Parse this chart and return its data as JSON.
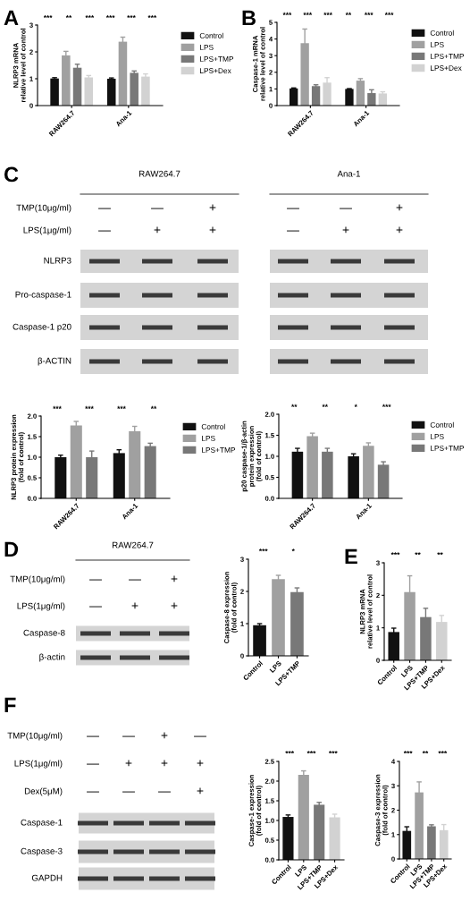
{
  "chart_data": [
    {
      "type": "bar",
      "title": "A",
      "ylabel": "NLRP3 mRNA\nrelative level of control",
      "categories": [
        "RAW264.7",
        "Ana-1"
      ],
      "series": [
        {
          "name": "Control",
          "color": "#111111",
          "values": [
            1.01,
            1.0
          ],
          "errors": [
            0.03,
            0.03
          ]
        },
        {
          "name": "LPS",
          "color": "#a0a0a0",
          "values": [
            1.87,
            2.38
          ],
          "errors": [
            0.15,
            0.17
          ]
        },
        {
          "name": "LPS+TMP",
          "color": "#787878",
          "values": [
            1.41,
            1.22
          ],
          "errors": [
            0.13,
            0.07
          ]
        },
        {
          "name": "LPS+Dex",
          "color": "#d2d2d2",
          "values": [
            1.05,
            1.08
          ],
          "errors": [
            0.07,
            0.1
          ]
        }
      ],
      "ylim": [
        0,
        3
      ],
      "yticks": [
        0,
        1,
        2,
        3
      ],
      "legend": "right",
      "annotations": [
        "***",
        "**",
        "***",
        "***",
        "***",
        "***"
      ]
    },
    {
      "type": "bar",
      "title": "B",
      "ylabel": "Caspase-1 mRNA\nrelative level of control",
      "categories": [
        "RAW264.7",
        "Ana-1"
      ],
      "series": [
        {
          "name": "Control",
          "color": "#111111",
          "values": [
            1.03,
            1.0
          ],
          "errors": [
            0.03,
            0.02
          ]
        },
        {
          "name": "LPS",
          "color": "#a0a0a0",
          "values": [
            3.75,
            1.5
          ],
          "errors": [
            0.85,
            0.12
          ]
        },
        {
          "name": "LPS+TMP",
          "color": "#787878",
          "values": [
            1.17,
            0.75
          ],
          "errors": [
            0.08,
            0.2
          ]
        },
        {
          "name": "LPS+Dex",
          "color": "#d2d2d2",
          "values": [
            1.38,
            0.73
          ],
          "errors": [
            0.3,
            0.1
          ]
        }
      ],
      "ylim": [
        0,
        5
      ],
      "yticks": [
        0,
        1,
        2,
        3,
        4,
        5
      ],
      "legend": "right",
      "annotations": [
        "***",
        "***",
        "***",
        "**",
        "***",
        "***"
      ]
    },
    {
      "type": "other",
      "title": "C",
      "subtitle": "RAW264.7",
      "y_categories": [
        "TMP(10μg/ml)",
        "LPS(1μg/ml)",
        "NLRP3",
        "Pro-caspase-1",
        "Caspase-1 p20",
        "β-ACTIN"
      ],
      "cell_labels": [
        [
          "—",
          "—",
          "+"
        ],
        [
          "—",
          "+",
          "+"
        ],
        null,
        null,
        null,
        null
      ]
    },
    {
      "type": "other",
      "subtitle": "Ana-1",
      "cell_labels": [
        [
          "—",
          "—",
          "+"
        ],
        [
          "—",
          "+",
          "+"
        ],
        null,
        null,
        null,
        null
      ]
    },
    {
      "type": "bar",
      "ylabel": "NLRP3 protein expression\n(fold of control)",
      "categories": [
        "RAW264.7",
        "Ana-1"
      ],
      "series": [
        {
          "name": "Control",
          "color": "#111111",
          "values": [
            1.0,
            1.1
          ],
          "errors": [
            0.05,
            0.08
          ]
        },
        {
          "name": "LPS",
          "color": "#a0a0a0",
          "values": [
            1.77,
            1.63
          ],
          "errors": [
            0.1,
            0.12
          ]
        },
        {
          "name": "LPS+TMP",
          "color": "#787878",
          "values": [
            1.0,
            1.27
          ],
          "errors": [
            0.15,
            0.07
          ]
        }
      ],
      "ylim": [
        0,
        2
      ],
      "yticks": [
        {
          "value": 0,
          "label": "0.0"
        },
        {
          "value": 0.5,
          "label": "0.5"
        },
        {
          "value": 1,
          "label": "1.0"
        },
        {
          "value": 1.5,
          "label": "1.5"
        },
        {
          "value": 2,
          "label": "2.0"
        }
      ],
      "legend": "right",
      "annotations": [
        "***",
        "***",
        "***",
        "**"
      ]
    },
    {
      "type": "bar",
      "ylabel": "p20 caspase-1/β-actin\nprotein expression\n(fold of control)",
      "categories": [
        "RAW264.7",
        "Ana-1"
      ],
      "series": [
        {
          "name": "Control",
          "color": "#111111",
          "values": [
            1.11,
            1.0
          ],
          "errors": [
            0.08,
            0.06
          ]
        },
        {
          "name": "LPS",
          "color": "#a0a0a0",
          "values": [
            1.48,
            1.25
          ],
          "errors": [
            0.07,
            0.07
          ]
        },
        {
          "name": "LPS+TMP",
          "color": "#787878",
          "values": [
            1.11,
            0.8
          ],
          "errors": [
            0.08,
            0.07
          ]
        }
      ],
      "ylim": [
        0,
        2
      ],
      "yticks": [
        {
          "value": 0,
          "label": "0.0"
        },
        {
          "value": 0.5,
          "label": "0.5"
        },
        {
          "value": 1,
          "label": "1.0"
        },
        {
          "value": 1.5,
          "label": "1.5"
        },
        {
          "value": 2,
          "label": "2.0"
        }
      ],
      "legend": "right",
      "annotations": [
        "**",
        "**",
        "*",
        "***"
      ]
    },
    {
      "type": "other",
      "title": "D",
      "subtitle": "RAW264.7",
      "y_categories": [
        "TMP(10μg/ml)",
        "LPS(1μg/ml)",
        "Caspase-8",
        "β-actin"
      ],
      "cell_labels": [
        [
          "—",
          "—",
          "+"
        ],
        [
          "—",
          "+",
          "+"
        ],
        null,
        null
      ]
    },
    {
      "type": "bar",
      "ylabel": "Caspase-8 expression\n(fold of control)",
      "categories": [
        "Control",
        "LPS",
        "LPS+TMP"
      ],
      "values": [
        0.95,
        2.38,
        1.98
      ],
      "errors": [
        0.05,
        0.12,
        0.13
      ],
      "colors": [
        "#111111",
        "#a0a0a0",
        "#787878"
      ],
      "ylim": [
        0,
        3
      ],
      "yticks": [
        0,
        1,
        2,
        3
      ],
      "annotations": [
        "***",
        "*"
      ]
    },
    {
      "type": "bar",
      "title": "E",
      "ylabel": "NLRP3 mRNA\nrelative level of control",
      "categories": [
        "Control",
        "LPS",
        "LPS+TMP",
        "LPS+Dex"
      ],
      "values": [
        0.87,
        2.1,
        1.33,
        1.18
      ],
      "errors": [
        0.12,
        0.5,
        0.27,
        0.2
      ],
      "colors": [
        "#111111",
        "#a0a0a0",
        "#787878",
        "#d2d2d2"
      ],
      "ylim": [
        0,
        3
      ],
      "yticks": [
        0,
        1,
        2,
        3
      ],
      "annotations": [
        "***",
        "**",
        "**"
      ]
    },
    {
      "type": "other",
      "title": "F",
      "y_categories": [
        "TMP(10μg/ml)",
        "LPS(1μg/ml)",
        "Dex(5μM)",
        "Caspase-1",
        "Caspase-3",
        "GAPDH"
      ],
      "cell_labels": [
        [
          "—",
          "—",
          "+",
          "—"
        ],
        [
          "—",
          "+",
          "+",
          "+"
        ],
        [
          "—",
          "—",
          "—",
          "+"
        ],
        null,
        null,
        null
      ]
    },
    {
      "type": "bar",
      "ylabel": "Caspase-1 expression\n(fold of control)",
      "categories": [
        "Control",
        "LPS",
        "LPS+TMP",
        "LPS+Dex"
      ],
      "values": [
        1.09,
        2.16,
        1.4,
        1.08
      ],
      "errors": [
        0.05,
        0.1,
        0.06,
        0.08
      ],
      "colors": [
        "#111111",
        "#a0a0a0",
        "#787878",
        "#d2d2d2"
      ],
      "ylim": [
        0,
        2.5
      ],
      "yticks": [
        {
          "value": 0,
          "label": "0.0"
        },
        {
          "value": 0.5,
          "label": "0.5"
        },
        {
          "value": 1,
          "label": "1.0"
        },
        {
          "value": 1.5,
          "label": "1.5"
        },
        {
          "value": 2,
          "label": "2.0"
        },
        {
          "value": 2.5,
          "label": "2.5"
        }
      ],
      "annotations": [
        "***",
        "***",
        "***"
      ]
    },
    {
      "type": "bar",
      "ylabel": "Caspase-3 expression\n(fold of control)",
      "categories": [
        "Control",
        "LPS",
        "LPS+TMP",
        "LPS+Dex"
      ],
      "values": [
        1.15,
        2.73,
        1.34,
        1.18
      ],
      "errors": [
        0.17,
        0.43,
        0.06,
        0.23
      ],
      "colors": [
        "#111111",
        "#a0a0a0",
        "#787878",
        "#d2d2d2"
      ],
      "ylim": [
        0,
        4
      ],
      "yticks": [
        0,
        1,
        2,
        3,
        4
      ],
      "annotations": [
        "***",
        "**",
        "***"
      ]
    }
  ]
}
